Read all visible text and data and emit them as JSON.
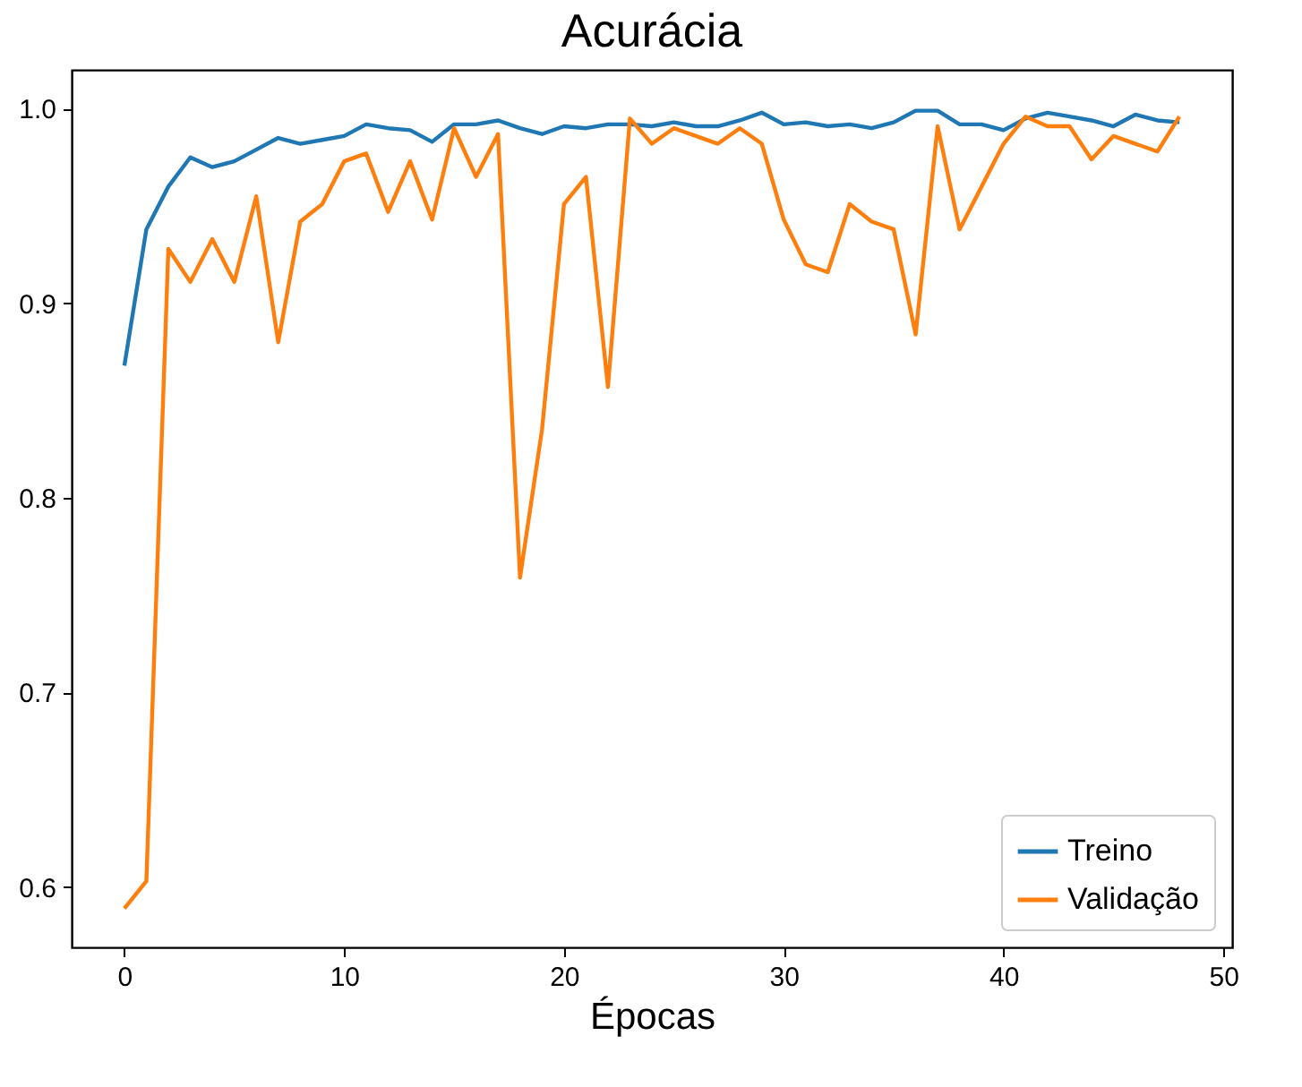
{
  "chart_data": {
    "type": "line",
    "title": "Acurácia",
    "xlabel": "Épocas",
    "x": [
      0,
      1,
      2,
      3,
      4,
      5,
      6,
      7,
      8,
      9,
      10,
      11,
      12,
      13,
      14,
      15,
      16,
      17,
      18,
      19,
      20,
      21,
      22,
      23,
      24,
      25,
      26,
      27,
      28,
      29,
      30,
      31,
      32,
      33,
      34,
      35,
      36,
      37,
      38,
      39,
      40,
      41,
      42,
      43,
      44,
      45,
      46,
      47,
      48
    ],
    "series": [
      {
        "name": "Treino",
        "color": "#1f77b4",
        "values": [
          0.868,
          0.938,
          0.96,
          0.975,
          0.97,
          0.973,
          0.979,
          0.985,
          0.982,
          0.984,
          0.986,
          0.992,
          0.99,
          0.989,
          0.983,
          0.992,
          0.992,
          0.994,
          0.99,
          0.987,
          0.991,
          0.99,
          0.992,
          0.992,
          0.991,
          0.993,
          0.991,
          0.991,
          0.994,
          0.998,
          0.992,
          0.993,
          0.991,
          0.992,
          0.99,
          0.993,
          0.999,
          0.999,
          0.992,
          0.992,
          0.989,
          0.995,
          0.998,
          0.996,
          0.994,
          0.991,
          0.997,
          0.994,
          0.993
        ]
      },
      {
        "name": "Validação",
        "color": "#ff7f0e",
        "values": [
          0.589,
          0.603,
          0.928,
          0.911,
          0.933,
          0.911,
          0.955,
          0.88,
          0.942,
          0.951,
          0.973,
          0.977,
          0.947,
          0.973,
          0.943,
          0.99,
          0.965,
          0.987,
          0.759,
          0.835,
          0.951,
          0.965,
          0.857,
          0.995,
          0.982,
          0.99,
          0.986,
          0.982,
          0.99,
          0.982,
          0.943,
          0.92,
          0.916,
          0.951,
          0.942,
          0.938,
          0.884,
          0.991,
          0.938,
          0.96,
          0.982,
          0.996,
          0.991,
          0.991,
          0.974,
          0.986,
          0.982,
          0.978,
          0.996
        ]
      }
    ],
    "xlim": [
      -2.4,
      50.4
    ],
    "xticks": [
      0,
      10,
      20,
      30,
      40,
      50
    ],
    "ylim": [
      0.569,
      1.02
    ],
    "yticks": [
      {
        "value": 0.6,
        "label": "0.6"
      },
      {
        "value": 0.7,
        "label": "0.7"
      },
      {
        "value": 0.8,
        "label": "0.8"
      },
      {
        "value": 0.9,
        "label": "0.9"
      },
      {
        "value": 1.0,
        "label": "1.0"
      }
    ],
    "legend": "bottom right",
    "grid": false
  }
}
